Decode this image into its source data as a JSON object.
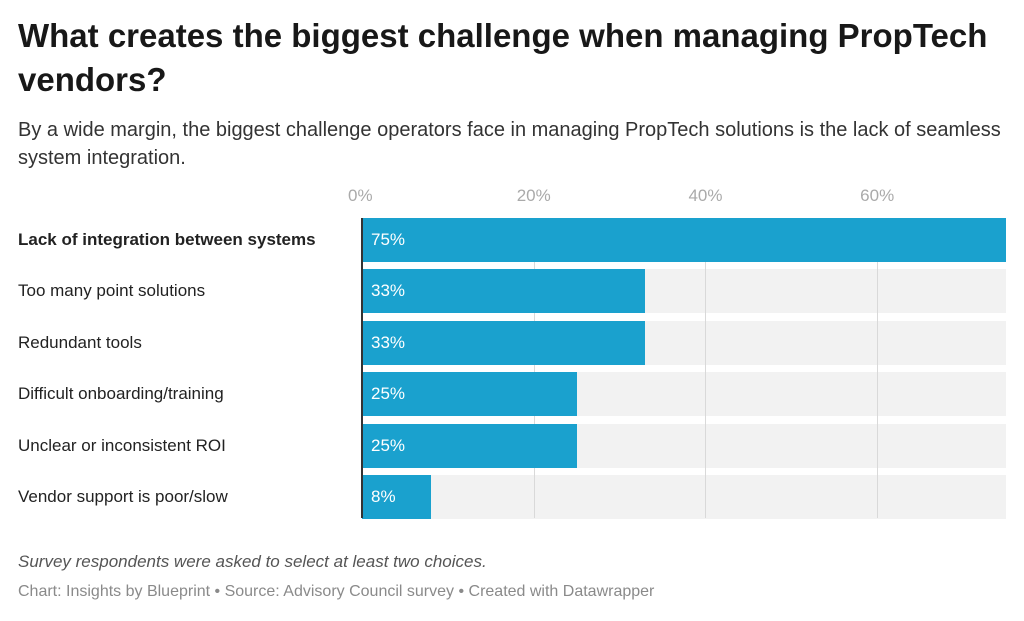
{
  "chart_data": {
    "type": "bar",
    "orientation": "horizontal",
    "title": "What creates the biggest challenge when managing PropTech vendors?",
    "subtitle": "By a wide margin, the biggest challenge operators face in managing PropTech solutions is the lack of seamless system integration.",
    "categories": [
      "Lack of integration between systems",
      "Too many point solutions",
      "Redundant tools",
      "Difficult onboarding/training",
      "Unclear or inconsistent ROI",
      "Vendor support is poor/slow"
    ],
    "values": [
      75,
      33,
      33,
      25,
      25,
      8
    ],
    "value_labels": [
      "75%",
      "33%",
      "33%",
      "25%",
      "25%",
      "8%"
    ],
    "highlighted_category": "Lack of integration between systems",
    "xlim": [
      0,
      75
    ],
    "xticks": [
      0,
      20,
      40,
      60
    ],
    "xtick_labels": [
      "0%",
      "20%",
      "40%",
      "60%"
    ],
    "xlabel": "",
    "ylabel": "",
    "grid": true,
    "bar_color": "#1aa1ce",
    "track_color": "#f2f2f2",
    "note": "Survey respondents were asked to select at least two choices.",
    "credit": "Chart: Insights by Blueprint • Source: Advisory Council survey • Created with Datawrapper"
  }
}
